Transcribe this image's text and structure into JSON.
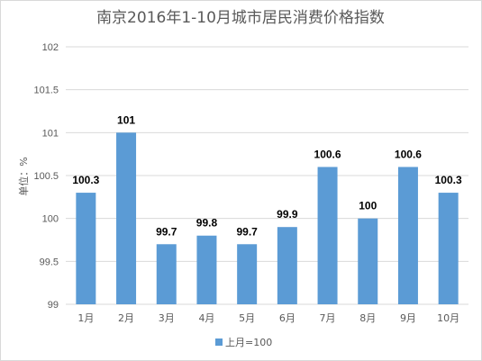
{
  "chart_data": {
    "type": "bar",
    "title": "南京2016年1-10月城市居民消费价格指数",
    "ylabel": "单位：%",
    "xlabel": "",
    "categories": [
      "1月",
      "2月",
      "3月",
      "4月",
      "5月",
      "6月",
      "7月",
      "8月",
      "9月",
      "10月"
    ],
    "series": [
      {
        "name": "上月=100",
        "color": "#5b9bd5",
        "values": [
          100.3,
          101,
          99.7,
          99.8,
          99.7,
          99.9,
          100.6,
          100,
          100.6,
          100.3
        ],
        "labels": [
          "100.3",
          "101",
          "99.7",
          "99.8",
          "99.7",
          "99.9",
          "100.6",
          "100",
          "100.6",
          "100.3"
        ]
      }
    ],
    "ylim": [
      99,
      102
    ],
    "yticks": [
      "99",
      "99.5",
      "100",
      "100.5",
      "101",
      "101.5",
      "102"
    ],
    "grid": true,
    "legend_position": "bottom"
  }
}
